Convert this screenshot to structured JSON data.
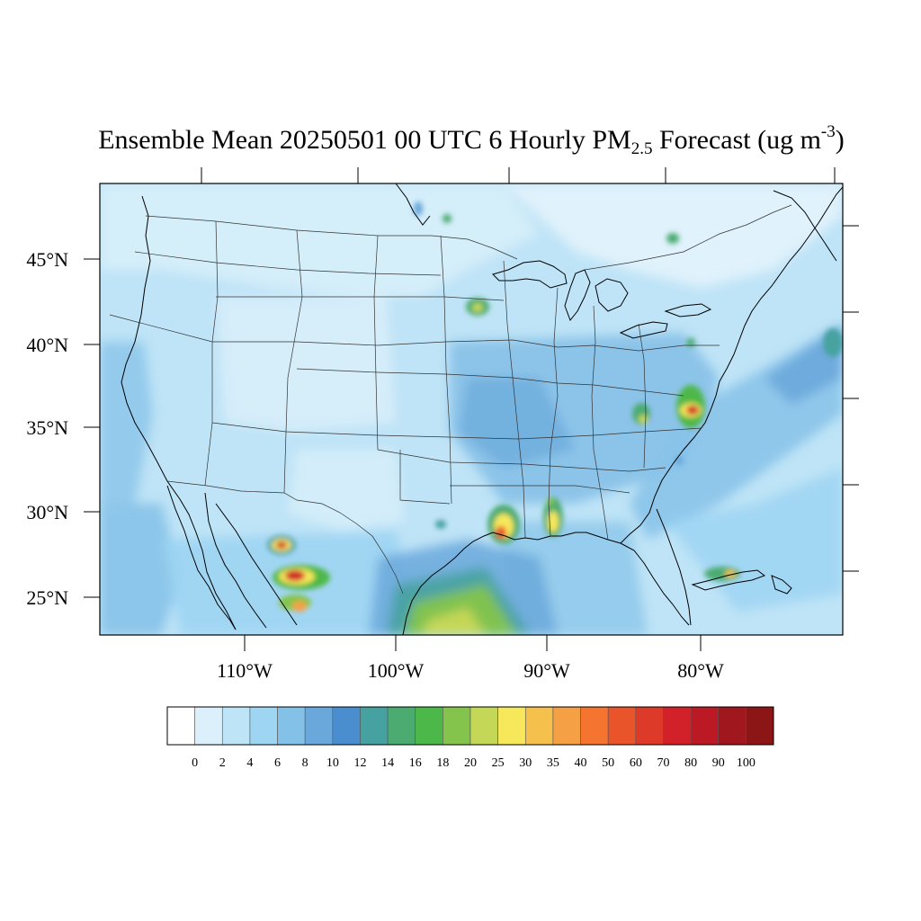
{
  "title": {
    "main": "Ensemble Mean 20250501 00 UTC 6 Hourly PM",
    "sub": "2.5",
    "mid": " Forecast (ug m",
    "sup": "-3",
    "end": ")"
  },
  "axes": {
    "lat_labels": [
      "45°N",
      "40°N",
      "35°N",
      "30°N",
      "25°N"
    ],
    "lon_labels": [
      "110°W",
      "100°W",
      "90°W",
      "80°W"
    ]
  },
  "colorbar": {
    "tick_labels": [
      "0",
      "2",
      "4",
      "6",
      "8",
      "10",
      "12",
      "14",
      "16",
      "18",
      "20",
      "25",
      "30",
      "35",
      "40",
      "50",
      "60",
      "70",
      "80",
      "90",
      "100"
    ],
    "colors": [
      "#ffffff",
      "#dcf0fb",
      "#bde4f7",
      "#9dd5f2",
      "#84c1e8",
      "#6aa8dc",
      "#4a8ecf",
      "#46a2a0",
      "#4bab71",
      "#4db84a",
      "#84c44c",
      "#c5d756",
      "#f6e85a",
      "#f5c04b",
      "#f6a045",
      "#f57430",
      "#e9542b",
      "#dd3a2a",
      "#d22129",
      "#bb1a24",
      "#a0171e",
      "#8c1515"
    ]
  },
  "map": {
    "background_color": "#bfe4f7",
    "hotspots": [
      {
        "name": "chihuahua-west",
        "level": 60
      },
      {
        "name": "chihuahua-east",
        "level": 70
      },
      {
        "name": "coahuila",
        "level": 40
      },
      {
        "name": "louisiana",
        "level": 50
      },
      {
        "name": "mississippi",
        "level": 40
      },
      {
        "name": "virginia-coast",
        "level": 80
      },
      {
        "name": "virginia-inland",
        "level": 30
      },
      {
        "name": "iowa",
        "level": 25
      },
      {
        "name": "gulf-plume",
        "level": 30
      },
      {
        "name": "bahamas",
        "level": 35
      },
      {
        "name": "minnesota-north",
        "level": 16
      },
      {
        "name": "ontario",
        "level": 16
      }
    ]
  }
}
